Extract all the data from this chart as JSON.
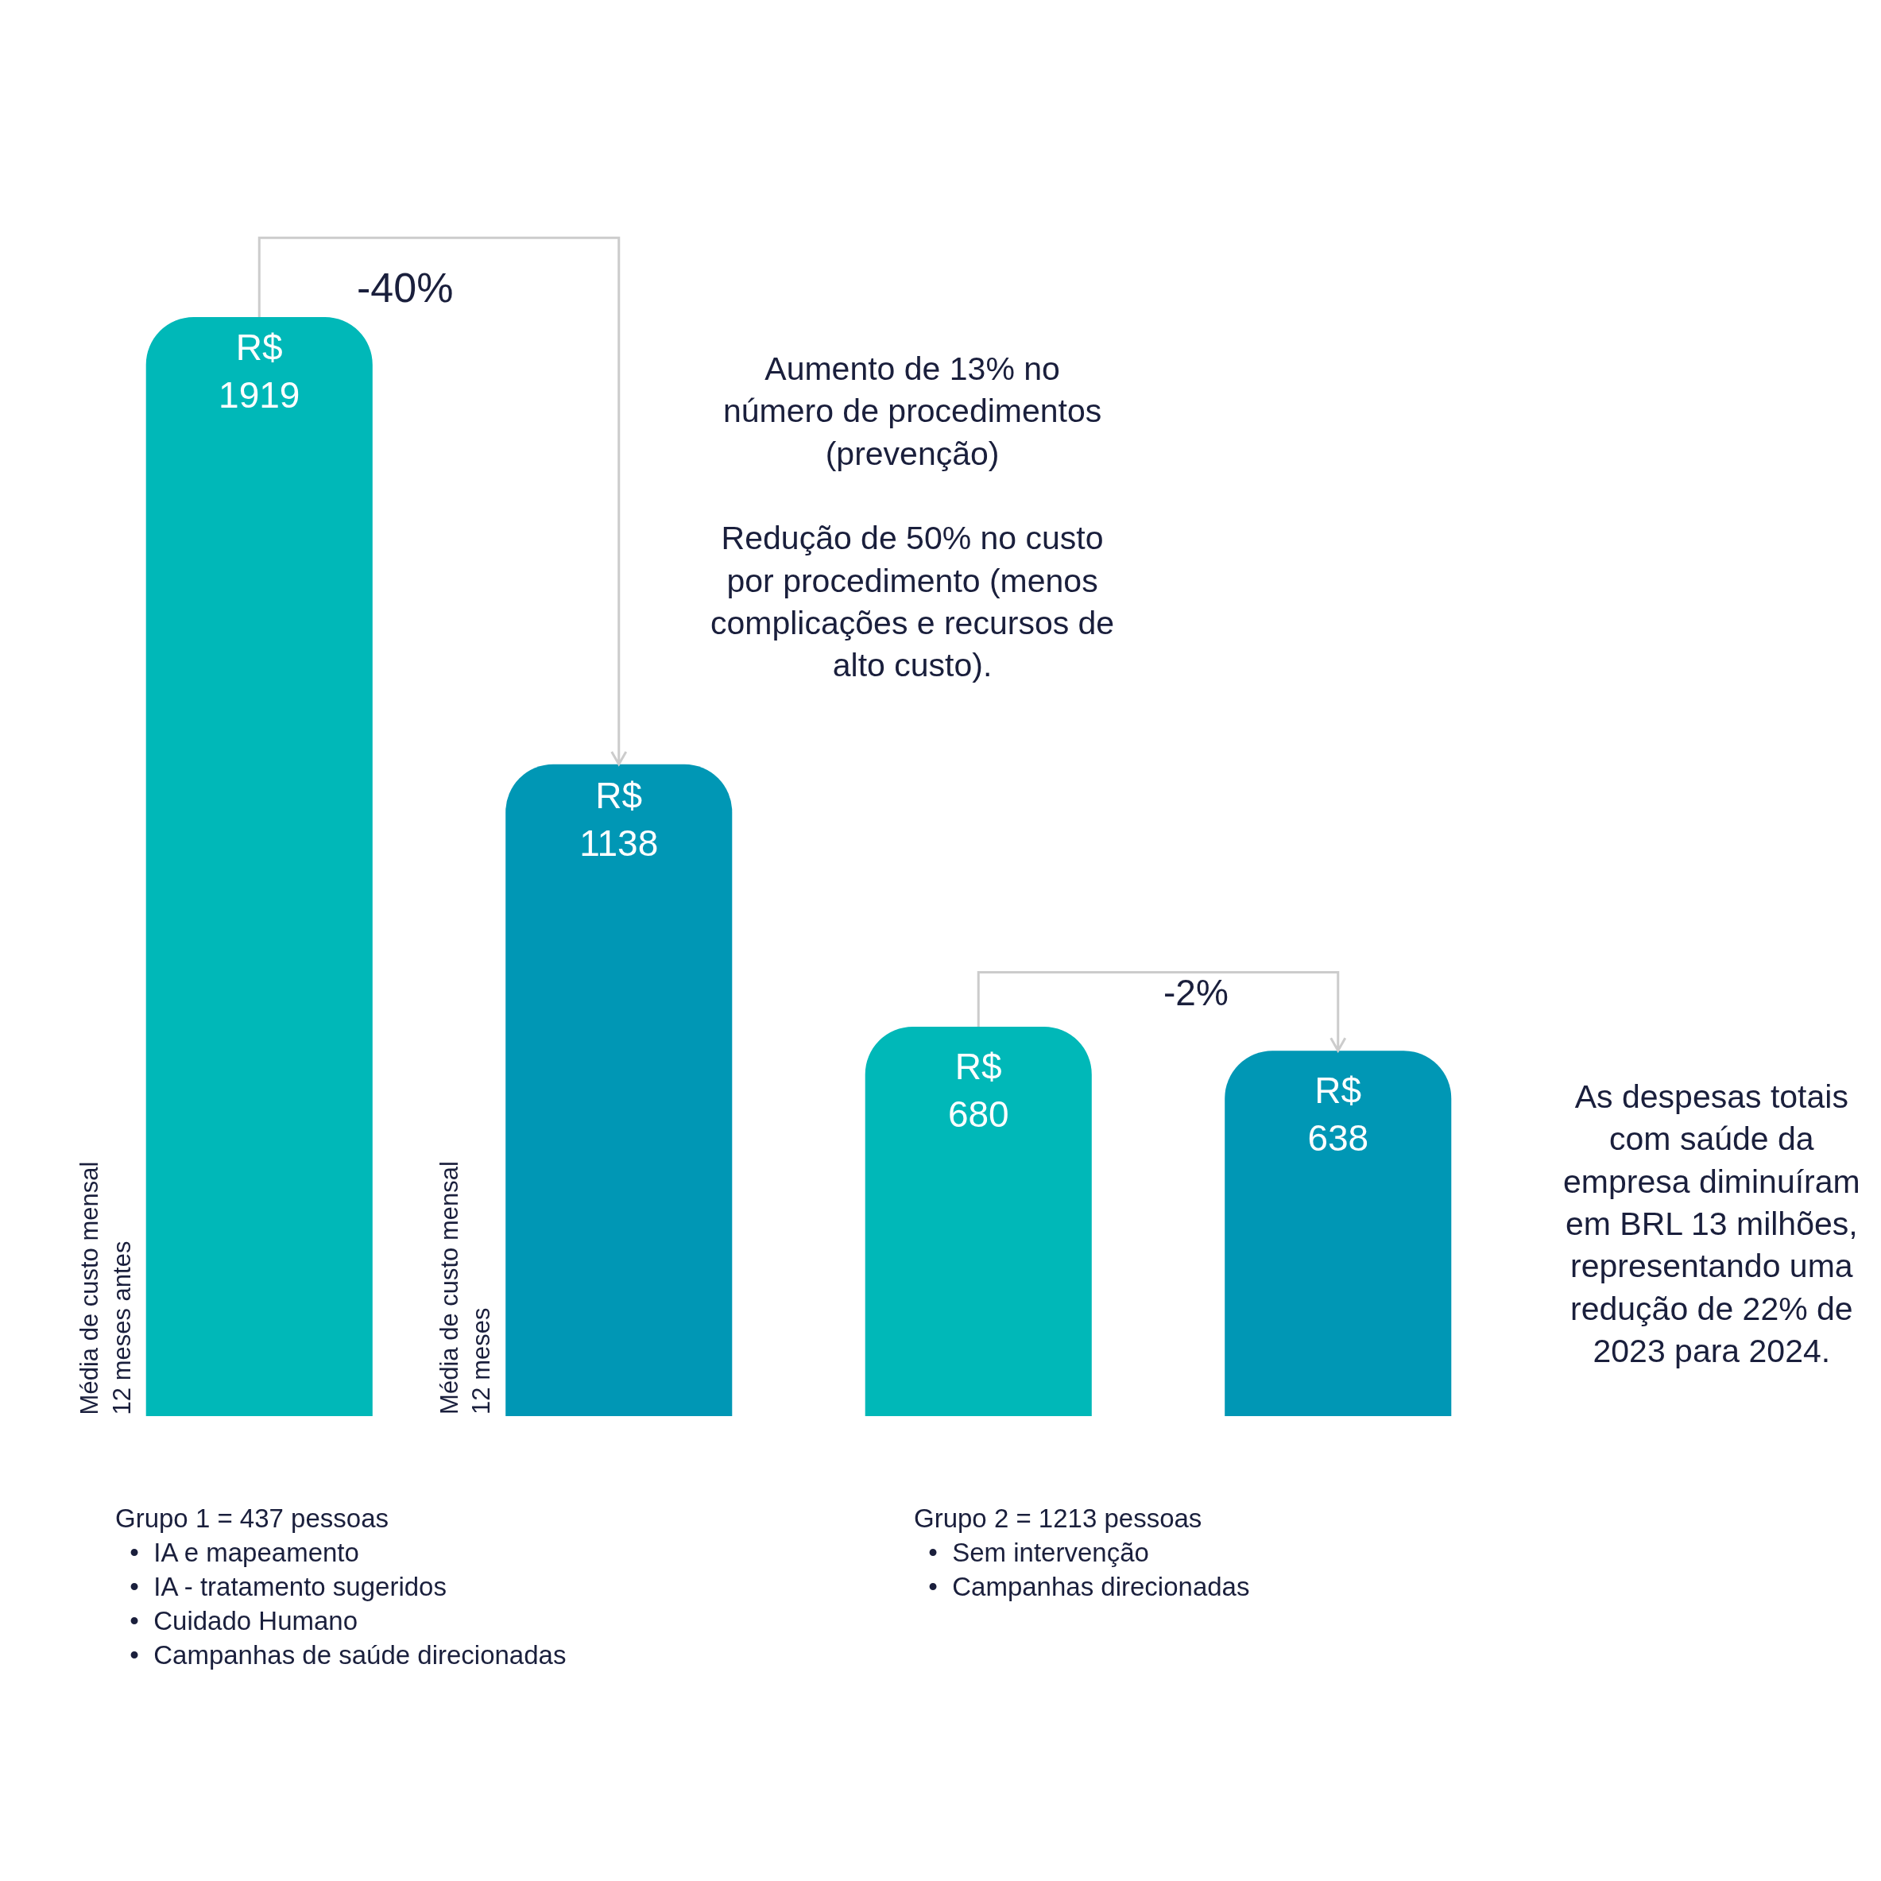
{
  "chart_data": {
    "type": "bar",
    "categories": [
      "Média de custo mensal\n12 meses antes",
      "Média de custo mensal\n12 meses",
      null,
      null
    ],
    "values": [
      1919,
      1138,
      680,
      638
    ],
    "colors": [
      "#00b8b8",
      "#0097b5",
      "#00b8b8",
      "#0097b5"
    ],
    "value_labels": [
      "R$\n1919",
      "R$\n1138",
      "R$\n680",
      "R$\n638"
    ],
    "tick_labels": false,
    "legend": false,
    "annotations": [
      "-40%",
      "-2%",
      "Aumento de 13% no\nnúmero de procedimentos\n(prevenção)\n\nRedução de 50% no custo\npor procedimento (menos\ncomplicações e recursos de\nalto custo).",
      "As despesas totais\ncom saúde da\nempresa diminuíram\nem BRL 13 milhões,\nrepresentando uma\nredução de 22% de\n2023 para 2024.",
      "Grupo 1 = 437 pessoas\n  •  IA e mapeamento\n  •  IA - tratamento sugeridos\n  •  Cuidado Humano\n  •  Campanhas de saúde direcionadas",
      "Grupo 2 = 1213 pessoas\n  •  Sem intervenção\n  •  Campanhas direcionadas"
    ]
  }
}
